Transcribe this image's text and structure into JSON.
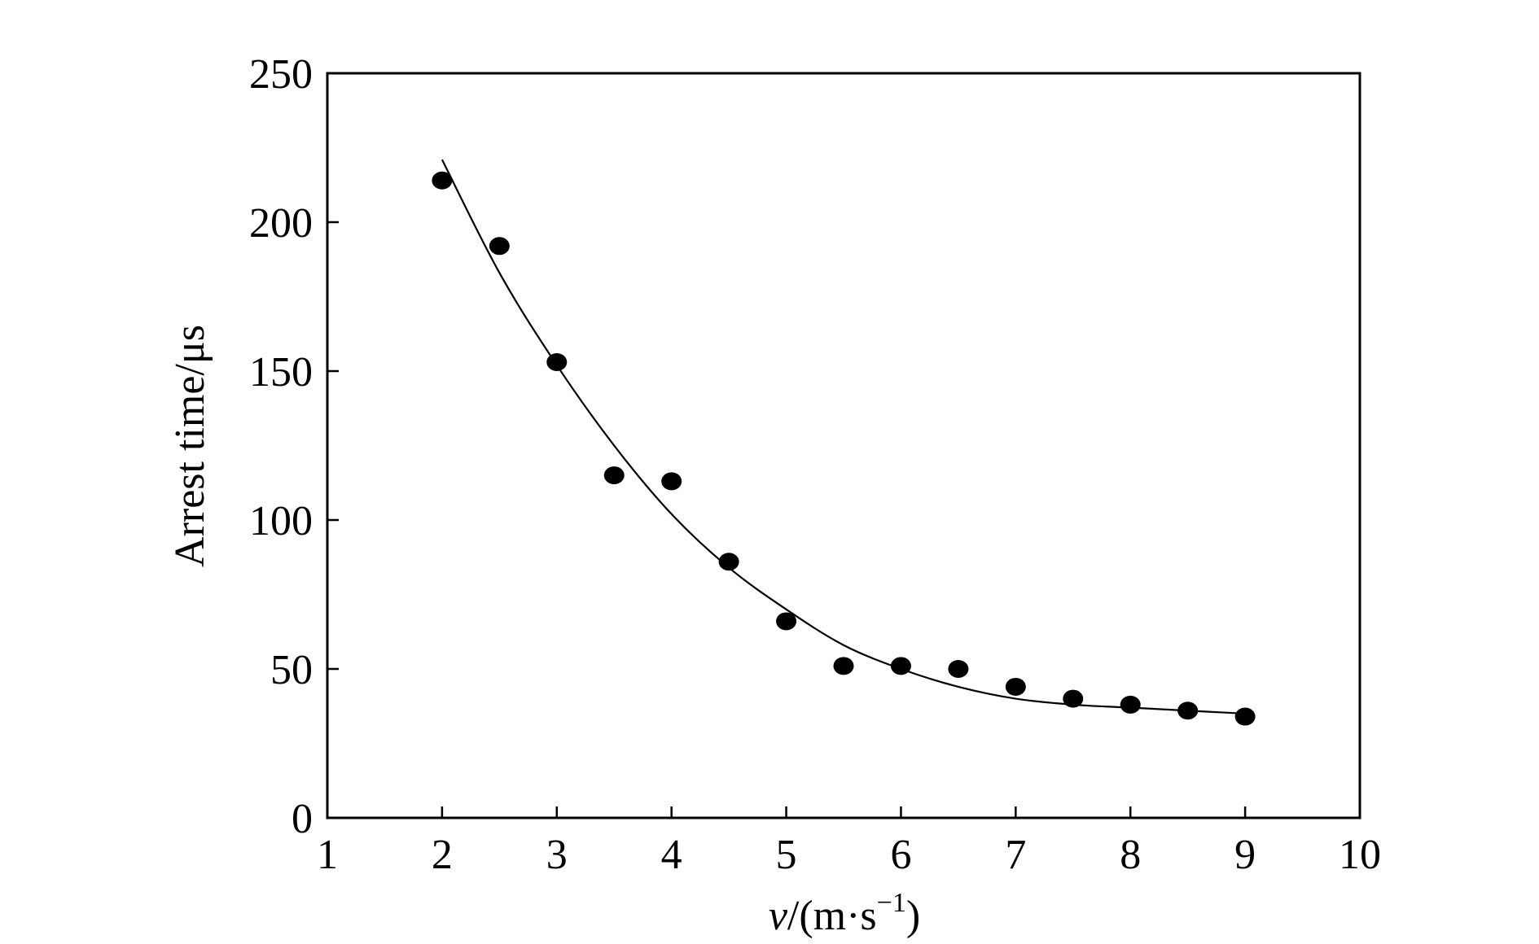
{
  "chart_data": {
    "type": "scatter",
    "title": "",
    "xlabel": {
      "var": "v",
      "rest": "/(m·s",
      "sup": "−1",
      "close": ")"
    },
    "ylabel": "Arrest time/μs",
    "xlim": [
      1,
      10
    ],
    "ylim": [
      0,
      250
    ],
    "xticks": [
      1,
      2,
      3,
      4,
      5,
      6,
      7,
      8,
      9,
      10
    ],
    "yticks": [
      0,
      50,
      100,
      150,
      200,
      250
    ],
    "grid": false,
    "legend": "none",
    "series": [
      {
        "kind": "points",
        "x": [
          2,
          2.5,
          3,
          3.5,
          4,
          4.5,
          5,
          5.5,
          6,
          6.5,
          7,
          7.5,
          8,
          8.5,
          9
        ],
        "y": [
          214,
          192,
          153,
          115,
          113,
          86,
          66,
          51,
          51,
          50,
          44,
          40,
          38,
          36,
          34
        ]
      },
      {
        "kind": "fit-curve",
        "x": [
          2,
          2.5,
          3,
          3.5,
          4,
          4.5,
          5,
          5.5,
          6,
          6.5,
          7,
          7.5,
          8,
          8.5,
          9
        ],
        "y": [
          221,
          183,
          152,
          125,
          102,
          84,
          70,
          58,
          50,
          44,
          40,
          38,
          37,
          36,
          35
        ]
      }
    ]
  }
}
